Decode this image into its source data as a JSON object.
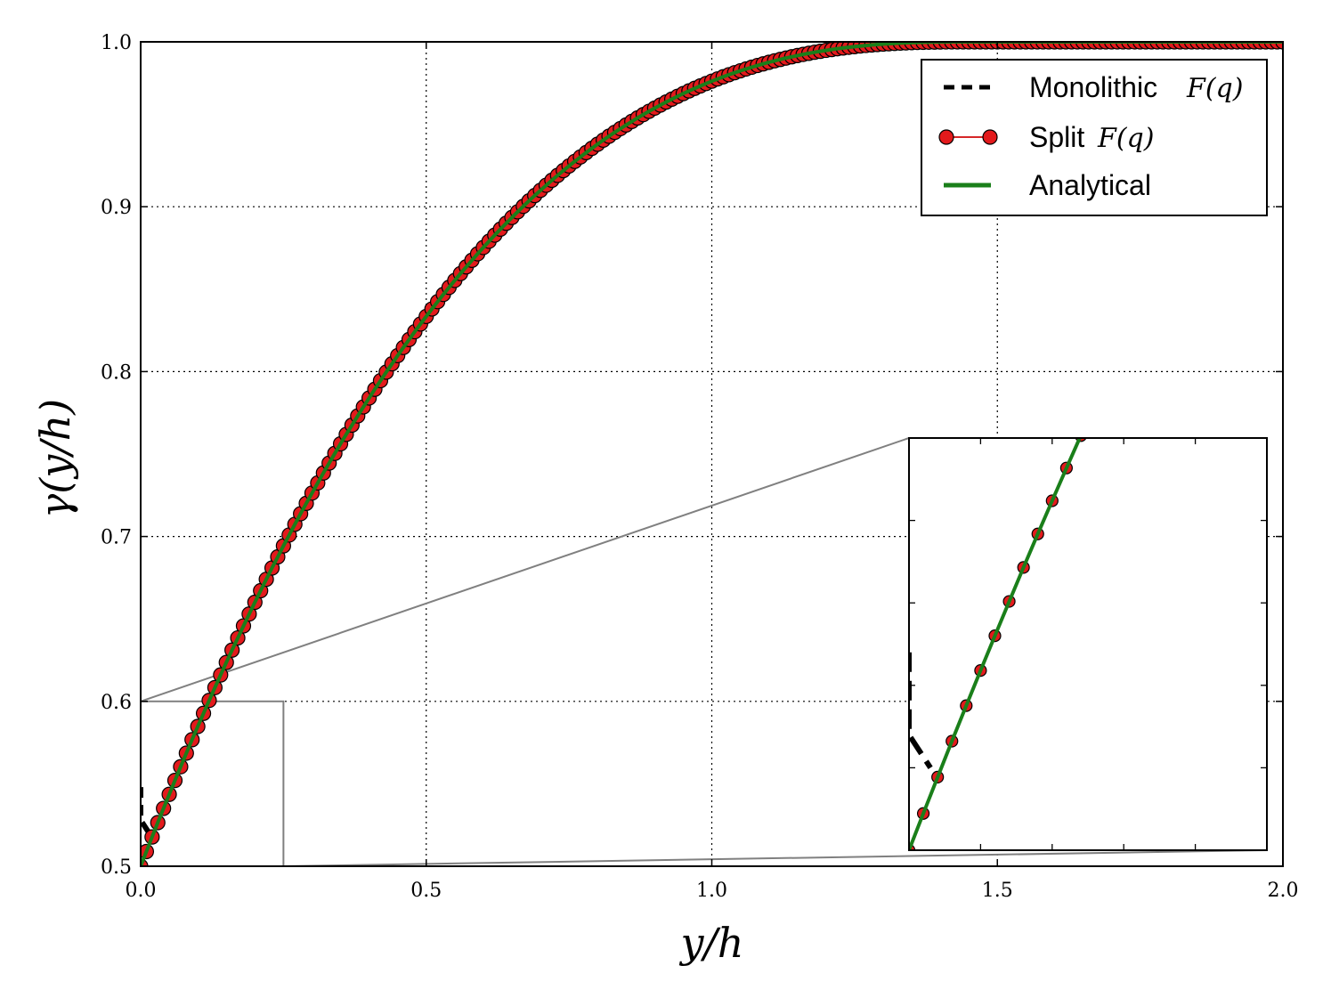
{
  "chart_data": {
    "type": "line",
    "xlabel": "y/h",
    "ylabel": "γ(y/h)",
    "xlim": [
      0.0,
      2.0
    ],
    "ylim": [
      0.5,
      1.0
    ],
    "xticks": [
      "0.0",
      "0.5",
      "1.0",
      "1.5",
      "2.0"
    ],
    "yticks": [
      "0.5",
      "0.6",
      "0.7",
      "0.8",
      "0.9",
      "1.0"
    ],
    "grid": true,
    "legend_position": "top-right",
    "legend": [
      {
        "text": "Monolithic",
        "math": "F(q)",
        "style": "dashed",
        "color": "#000000"
      },
      {
        "text": "Split",
        "math": "F(q)",
        "style": "line-marker",
        "color": "#d62728",
        "marker_fill": "#e31a1c"
      },
      {
        "text": "Analytical",
        "math": "",
        "style": "solid",
        "color": "#1a7f1a"
      }
    ],
    "series": [
      {
        "name": "Monolithic F(q)",
        "note_points": "dashed black; coincides with analytical except near the wall",
        "x": [
          0.0,
          0.0,
          0.015
        ],
        "y": [
          0.548,
          0.528,
          0.52
        ]
      },
      {
        "name": "Split F(q)",
        "marker": "circle",
        "x_start": 0.0,
        "x_end": 2.0,
        "x_step": 0.01
      },
      {
        "name": "Analytical",
        "x": [
          0.0,
          0.1,
          0.2,
          0.3,
          0.4,
          0.5,
          0.6,
          0.7,
          0.8,
          0.9,
          1.0,
          1.1,
          1.2,
          1.3,
          1.4,
          1.5,
          1.6,
          1.7,
          1.8,
          1.9,
          2.0
        ],
        "y": [
          0.5,
          0.56,
          0.64,
          0.71,
          0.77,
          0.82,
          0.865,
          0.9,
          0.93,
          0.955,
          0.972,
          0.984,
          0.991,
          0.996,
          0.998,
          0.999,
          1.0,
          1.0,
          1.0,
          1.0,
          1.0
        ]
      }
    ],
    "inset": {
      "zoom_region": {
        "xlim": [
          0.0,
          0.25
        ],
        "ylim": [
          0.5,
          0.6
        ]
      },
      "xticks_count": 5,
      "yticks_count": 5
    }
  },
  "colors": {
    "grid": "#000000",
    "inset_connector": "#808080",
    "monolithic": "#000000",
    "split_line": "#d62728",
    "split_marker": "#e31a1c",
    "analytical": "#1a7f1a"
  }
}
